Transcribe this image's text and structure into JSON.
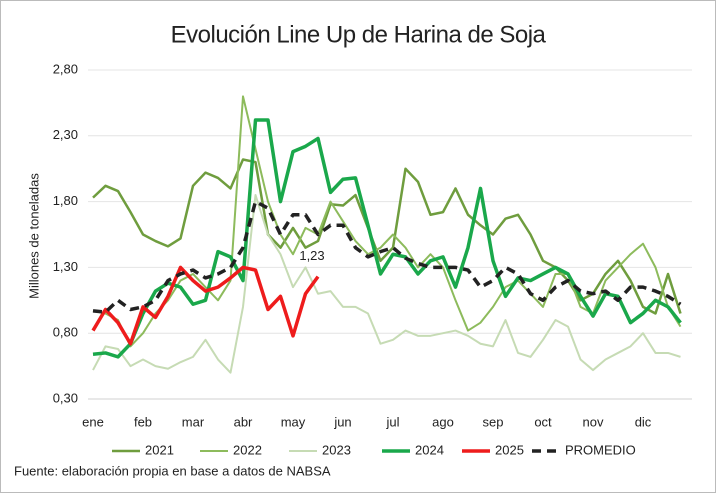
{
  "chart_data": {
    "type": "line",
    "title": "Evolución Line Up de Harina de Soja",
    "y_label": "Millones de toneladas",
    "source": "Fuente: elaboración propia en base a datos de NABSA",
    "categories": [
      "ene",
      null,
      null,
      null,
      "feb",
      null,
      null,
      null,
      "mar",
      null,
      null,
      null,
      "abr",
      null,
      null,
      null,
      "may",
      null,
      null,
      null,
      "jun",
      null,
      null,
      null,
      "jul",
      null,
      null,
      null,
      "ago",
      null,
      null,
      null,
      "sep",
      null,
      null,
      null,
      "oct",
      null,
      null,
      null,
      "nov",
      null,
      null,
      null,
      "dic",
      null,
      null,
      null
    ],
    "ylim": [
      0.3,
      2.8
    ],
    "yticks": [
      {
        "value": 0.3,
        "label": "0,30"
      },
      {
        "value": 0.8,
        "label": "0,80"
      },
      {
        "value": 1.3,
        "label": "1,30"
      },
      {
        "value": 1.8,
        "label": "1,80"
      },
      {
        "value": 2.3,
        "label": "2,30"
      },
      {
        "value": 2.8,
        "label": "2,80"
      }
    ],
    "grid": true,
    "legend": "bottom",
    "series": [
      {
        "name": "2021",
        "color": "#6f9d3e",
        "width": 2.5,
        "values": [
          1.83,
          1.92,
          1.88,
          1.72,
          1.55,
          1.5,
          1.46,
          1.52,
          1.92,
          2.02,
          1.98,
          1.9,
          2.12,
          2.1,
          1.55,
          1.45,
          1.6,
          1.45,
          1.5,
          1.78,
          1.77,
          1.85,
          1.6,
          1.35,
          1.45,
          2.05,
          1.95,
          1.7,
          1.72,
          1.9,
          1.7,
          1.62,
          1.55,
          1.67,
          1.7,
          1.55,
          1.35,
          1.3,
          1.2,
          1.05,
          1.1,
          1.25,
          1.35,
          1.2,
          1.0,
          0.95,
          1.25,
          0.95
        ]
      },
      {
        "name": "2022",
        "color": "#8dbb5c",
        "width": 2,
        "values": [
          0.97,
          0.95,
          0.9,
          0.7,
          0.8,
          0.95,
          1.05,
          1.2,
          1.25,
          1.15,
          1.05,
          1.2,
          2.6,
          2.2,
          1.8,
          1.55,
          1.4,
          1.6,
          1.55,
          1.8,
          1.65,
          1.5,
          1.4,
          1.45,
          1.55,
          1.45,
          1.3,
          1.4,
          1.3,
          1.05,
          0.82,
          0.88,
          1.0,
          1.15,
          1.2,
          1.1,
          1.0,
          1.25,
          1.25,
          1.0,
          0.95,
          1.2,
          1.3,
          1.4,
          1.48,
          1.3,
          1.0,
          0.85
        ]
      },
      {
        "name": "2023",
        "color": "#c6dbb4",
        "width": 2,
        "values": [
          0.52,
          0.7,
          0.68,
          0.55,
          0.6,
          0.55,
          0.53,
          0.58,
          0.62,
          0.75,
          0.6,
          0.5,
          1.0,
          1.85,
          1.55,
          1.4,
          1.15,
          1.3,
          1.1,
          1.12,
          1.0,
          1.0,
          0.95,
          0.72,
          0.75,
          0.82,
          0.78,
          0.78,
          0.8,
          0.82,
          0.78,
          0.72,
          0.7,
          0.9,
          0.65,
          0.62,
          0.75,
          0.9,
          0.85,
          0.6,
          0.52,
          0.6,
          0.65,
          0.7,
          0.8,
          0.65,
          0.65,
          0.62
        ]
      },
      {
        "name": "2024",
        "color": "#1aa84b",
        "width": 3.5,
        "values": [
          0.64,
          0.65,
          0.62,
          0.72,
          0.95,
          1.12,
          1.18,
          1.15,
          1.02,
          1.05,
          1.42,
          1.38,
          1.2,
          2.42,
          2.42,
          1.8,
          2.18,
          2.22,
          2.28,
          1.87,
          1.97,
          1.98,
          1.62,
          1.25,
          1.4,
          1.38,
          1.25,
          1.35,
          1.38,
          1.15,
          1.45,
          1.9,
          1.35,
          1.08,
          1.22,
          1.2,
          1.25,
          1.3,
          1.25,
          1.08,
          0.93,
          1.1,
          1.08,
          0.88,
          0.95,
          1.05,
          1.0,
          0.88
        ]
      },
      {
        "name": "2025",
        "color": "#ee1c1c",
        "width": 3.5,
        "values": [
          0.82,
          0.98,
          0.88,
          0.72,
          1.0,
          0.92,
          1.08,
          1.3,
          1.2,
          1.12,
          1.15,
          1.22,
          1.3,
          1.28,
          0.98,
          1.08,
          0.78,
          1.1,
          1.23,
          null,
          null,
          null,
          null,
          null,
          null,
          null,
          null,
          null,
          null,
          null,
          null,
          null,
          null,
          null,
          null,
          null,
          null,
          null,
          null,
          null,
          null,
          null,
          null,
          null,
          null,
          null,
          null,
          null
        ],
        "value_labels": [
          null,
          null,
          null,
          null,
          null,
          null,
          null,
          null,
          null,
          null,
          null,
          null,
          null,
          null,
          null,
          null,
          null,
          null,
          "1,23",
          null,
          null,
          null,
          null,
          null,
          null,
          null,
          null,
          null,
          null,
          null,
          null,
          null,
          null,
          null,
          null,
          null,
          null,
          null,
          null,
          null,
          null,
          null,
          null,
          null,
          null,
          null,
          null,
          null
        ]
      },
      {
        "name": "PROMEDIO",
        "color": "#222222",
        "width": 3.5,
        "dashed": true,
        "values": [
          0.97,
          0.96,
          1.05,
          0.98,
          1.0,
          1.05,
          1.2,
          1.25,
          1.28,
          1.22,
          1.25,
          1.3,
          1.45,
          1.8,
          1.75,
          1.55,
          1.7,
          1.7,
          1.55,
          1.62,
          1.62,
          1.45,
          1.38,
          1.42,
          1.45,
          1.37,
          1.33,
          1.3,
          1.3,
          1.3,
          1.28,
          1.15,
          1.2,
          1.3,
          1.25,
          1.1,
          1.05,
          1.15,
          1.2,
          1.12,
          1.1,
          1.12,
          1.05,
          1.15,
          1.15,
          1.12,
          1.08,
          1.02
        ]
      }
    ]
  }
}
